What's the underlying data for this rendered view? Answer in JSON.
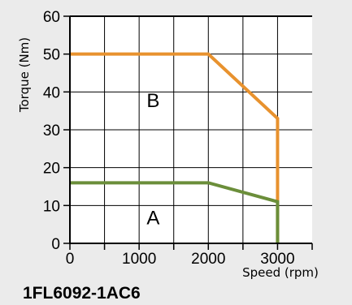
{
  "chart_data": {
    "type": "line",
    "title": "",
    "model": "1FL6092-1AC6",
    "xlabel": "Speed (rpm)",
    "ylabel": "Torque (Nm)",
    "xlim": [
      0,
      3500
    ],
    "ylim": [
      0,
      60
    ],
    "xticks": [
      0,
      1000,
      2000,
      3000
    ],
    "yticks": [
      0,
      10,
      20,
      30,
      40,
      50,
      60
    ],
    "grid": true,
    "series": [
      {
        "name": "B",
        "color": "#e8922e",
        "x": [
          0,
          2000,
          3000,
          3000
        ],
        "y": [
          50,
          50,
          33,
          0
        ]
      },
      {
        "name": "A",
        "color": "#6b8e3a",
        "x": [
          0,
          2000,
          3000,
          3000
        ],
        "y": [
          16,
          16,
          11,
          0
        ]
      }
    ],
    "annotations": [
      {
        "text": "B",
        "x": 1250,
        "y": 36
      },
      {
        "text": "A",
        "x": 1250,
        "y": 5
      }
    ]
  }
}
